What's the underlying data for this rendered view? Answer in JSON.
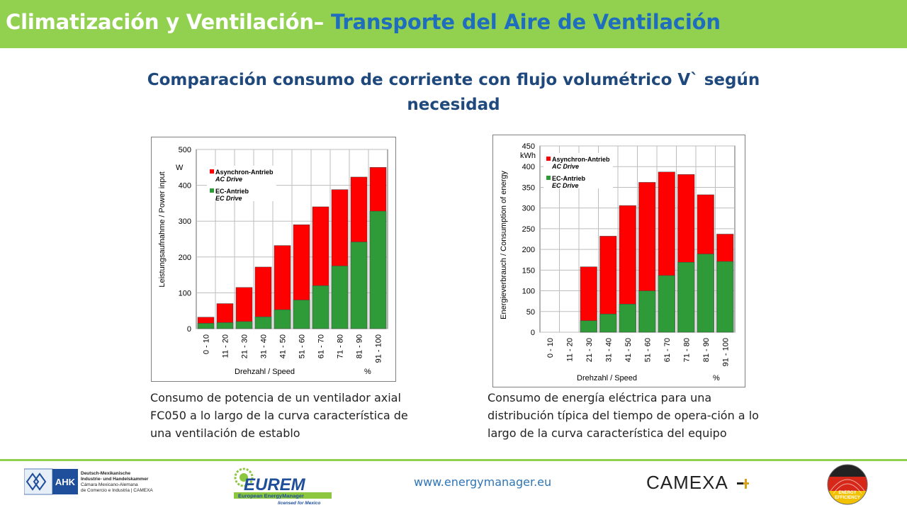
{
  "header": {
    "title_part1": "Climatización y Ventilación– ",
    "title_part2": "Transporte del Aire de Ventilación"
  },
  "subtitle": "Comparación consumo de corriente con flujo volumétrico V` según necesidad",
  "chart_data": [
    {
      "type": "bar",
      "unit": "W",
      "ylabel": "Leistungsaufnahme / Power input",
      "xlabel": "Drehzahl / Speed",
      "xunit": "%",
      "ylim": [
        0,
        500
      ],
      "yticks": [
        0,
        100,
        200,
        300,
        400,
        500
      ],
      "categories": [
        "0 - 10",
        "11 - 20",
        "21 - 30",
        "31 - 40",
        "41 - 50",
        "51 - 60",
        "61 - 70",
        "71 - 80",
        "81 - 90",
        "91 - 100"
      ],
      "series": [
        {
          "name": "Asynchron-Antrieb",
          "name2": "AC Drive",
          "color": "#ff0000",
          "values": [
            32,
            70,
            115,
            172,
            232,
            290,
            340,
            388,
            423,
            450
          ]
        },
        {
          "name": "EC-Antrieb",
          "name2": "EC Drive",
          "color": "#2e9b38",
          "values": [
            15,
            17,
            20,
            33,
            53,
            80,
            120,
            175,
            242,
            328
          ]
        }
      ]
    },
    {
      "type": "bar",
      "unit": "kWh",
      "ylabel": "Energieverbrauch / Consumption of energy",
      "xlabel": "Drehzahl / Speed",
      "xunit": "%",
      "ylim": [
        0,
        450
      ],
      "yticks": [
        0,
        50,
        100,
        150,
        200,
        250,
        300,
        350,
        400,
        450
      ],
      "categories": [
        "0 - 10",
        "11 - 20",
        "21 - 30",
        "31 - 40",
        "41 - 50",
        "51 - 60",
        "61 - 70",
        "71 - 80",
        "81 - 90",
        "91 - 100"
      ],
      "series": [
        {
          "name": "Asynchron-Antrieb",
          "name2": "AC Drive",
          "color": "#ff0000",
          "values": [
            0,
            0,
            158,
            232,
            306,
            362,
            387,
            381,
            332,
            237
          ]
        },
        {
          "name": "EC-Antrieb",
          "name2": "EC Drive",
          "color": "#2e9b38",
          "values": [
            0,
            0,
            28,
            44,
            68,
            100,
            137,
            169,
            189,
            171
          ]
        }
      ]
    }
  ],
  "captions": {
    "left": "Consumo de potencia de un ventilador axial FC050 a lo largo de la curva característica de una ventilación de establo",
    "right": "Consumo de energía eléctrica para una distribución típica del tiempo de opera-ción a lo largo de la curva característica del equipo"
  },
  "footer": {
    "ahk_short": "AHK",
    "ahk_line1": "Deutsch-Mexikanische",
    "ahk_line2": "Industrie- und Handelskammer",
    "ahk_line3": "Cámara Mexicano-Alemana",
    "ahk_line4": "de Comercio e Industria | CAMEXA",
    "eurem_name": "EUREM",
    "eurem_tag": "European EnergyManager",
    "eurem_lic": "licensed for Mexico",
    "url": "www.energymanager.eu",
    "camexa": "CAMEXA",
    "badge_line1": "ENERGY",
    "badge_line2": "EFFICIENCY"
  }
}
